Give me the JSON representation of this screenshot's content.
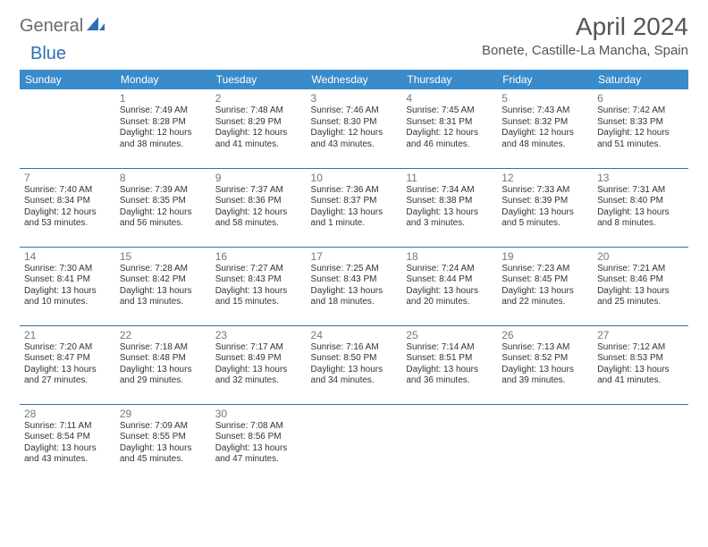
{
  "title": "April 2024",
  "location": "Bonete, Castille-La Mancha, Spain",
  "logo": {
    "part1": "General",
    "part2": "Blue"
  },
  "colors": {
    "header_bg": "#3a8bc9",
    "header_fg": "#ffffff",
    "row_border": "#3a6fa5",
    "logo_gray": "#6b6b6b",
    "logo_blue": "#2d6fb5",
    "title_color": "#555555"
  },
  "weekdays": [
    "Sunday",
    "Monday",
    "Tuesday",
    "Wednesday",
    "Thursday",
    "Friday",
    "Saturday"
  ],
  "weeks": [
    [
      null,
      {
        "d": "1",
        "sr": "7:49 AM",
        "ss": "8:28 PM",
        "dl": "12 hours and 38 minutes."
      },
      {
        "d": "2",
        "sr": "7:48 AM",
        "ss": "8:29 PM",
        "dl": "12 hours and 41 minutes."
      },
      {
        "d": "3",
        "sr": "7:46 AM",
        "ss": "8:30 PM",
        "dl": "12 hours and 43 minutes."
      },
      {
        "d": "4",
        "sr": "7:45 AM",
        "ss": "8:31 PM",
        "dl": "12 hours and 46 minutes."
      },
      {
        "d": "5",
        "sr": "7:43 AM",
        "ss": "8:32 PM",
        "dl": "12 hours and 48 minutes."
      },
      {
        "d": "6",
        "sr": "7:42 AM",
        "ss": "8:33 PM",
        "dl": "12 hours and 51 minutes."
      }
    ],
    [
      {
        "d": "7",
        "sr": "7:40 AM",
        "ss": "8:34 PM",
        "dl": "12 hours and 53 minutes."
      },
      {
        "d": "8",
        "sr": "7:39 AM",
        "ss": "8:35 PM",
        "dl": "12 hours and 56 minutes."
      },
      {
        "d": "9",
        "sr": "7:37 AM",
        "ss": "8:36 PM",
        "dl": "12 hours and 58 minutes."
      },
      {
        "d": "10",
        "sr": "7:36 AM",
        "ss": "8:37 PM",
        "dl": "13 hours and 1 minute."
      },
      {
        "d": "11",
        "sr": "7:34 AM",
        "ss": "8:38 PM",
        "dl": "13 hours and 3 minutes."
      },
      {
        "d": "12",
        "sr": "7:33 AM",
        "ss": "8:39 PM",
        "dl": "13 hours and 5 minutes."
      },
      {
        "d": "13",
        "sr": "7:31 AM",
        "ss": "8:40 PM",
        "dl": "13 hours and 8 minutes."
      }
    ],
    [
      {
        "d": "14",
        "sr": "7:30 AM",
        "ss": "8:41 PM",
        "dl": "13 hours and 10 minutes."
      },
      {
        "d": "15",
        "sr": "7:28 AM",
        "ss": "8:42 PM",
        "dl": "13 hours and 13 minutes."
      },
      {
        "d": "16",
        "sr": "7:27 AM",
        "ss": "8:43 PM",
        "dl": "13 hours and 15 minutes."
      },
      {
        "d": "17",
        "sr": "7:25 AM",
        "ss": "8:43 PM",
        "dl": "13 hours and 18 minutes."
      },
      {
        "d": "18",
        "sr": "7:24 AM",
        "ss": "8:44 PM",
        "dl": "13 hours and 20 minutes."
      },
      {
        "d": "19",
        "sr": "7:23 AM",
        "ss": "8:45 PM",
        "dl": "13 hours and 22 minutes."
      },
      {
        "d": "20",
        "sr": "7:21 AM",
        "ss": "8:46 PM",
        "dl": "13 hours and 25 minutes."
      }
    ],
    [
      {
        "d": "21",
        "sr": "7:20 AM",
        "ss": "8:47 PM",
        "dl": "13 hours and 27 minutes."
      },
      {
        "d": "22",
        "sr": "7:18 AM",
        "ss": "8:48 PM",
        "dl": "13 hours and 29 minutes."
      },
      {
        "d": "23",
        "sr": "7:17 AM",
        "ss": "8:49 PM",
        "dl": "13 hours and 32 minutes."
      },
      {
        "d": "24",
        "sr": "7:16 AM",
        "ss": "8:50 PM",
        "dl": "13 hours and 34 minutes."
      },
      {
        "d": "25",
        "sr": "7:14 AM",
        "ss": "8:51 PM",
        "dl": "13 hours and 36 minutes."
      },
      {
        "d": "26",
        "sr": "7:13 AM",
        "ss": "8:52 PM",
        "dl": "13 hours and 39 minutes."
      },
      {
        "d": "27",
        "sr": "7:12 AM",
        "ss": "8:53 PM",
        "dl": "13 hours and 41 minutes."
      }
    ],
    [
      {
        "d": "28",
        "sr": "7:11 AM",
        "ss": "8:54 PM",
        "dl": "13 hours and 43 minutes."
      },
      {
        "d": "29",
        "sr": "7:09 AM",
        "ss": "8:55 PM",
        "dl": "13 hours and 45 minutes."
      },
      {
        "d": "30",
        "sr": "7:08 AM",
        "ss": "8:56 PM",
        "dl": "13 hours and 47 minutes."
      },
      null,
      null,
      null,
      null
    ]
  ]
}
